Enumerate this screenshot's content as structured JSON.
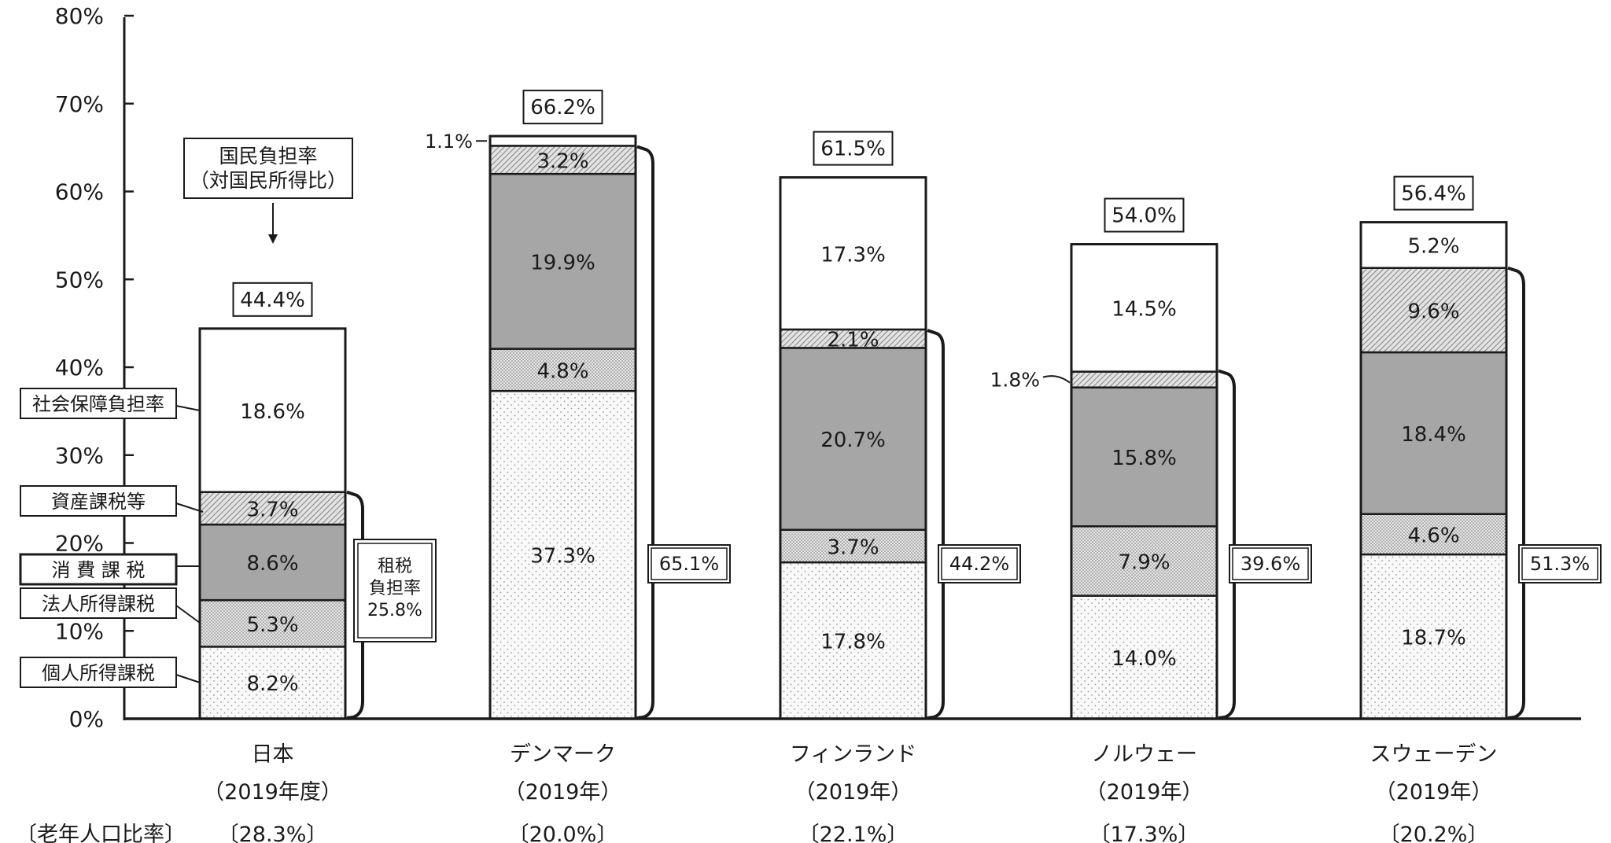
{
  "chart_data": {
    "type": "bar",
    "stacked": true,
    "ylim": [
      0,
      80
    ],
    "ytick_labels": [
      "0%",
      "10%",
      "20%",
      "30%",
      "40%",
      "50%",
      "60%",
      "70%",
      "80%"
    ],
    "ytick_values": [
      0,
      10,
      20,
      30,
      40,
      50,
      60,
      70,
      80
    ],
    "grid": false,
    "series": [
      {
        "name": "個人所得課税",
        "pattern": "dots"
      },
      {
        "name": "法人所得課税",
        "pattern": "dense-dots"
      },
      {
        "name": "消 費 課 税",
        "pattern": "solid-gray"
      },
      {
        "name": "資産課税等",
        "pattern": "hatch"
      },
      {
        "name": "社会保障負担率",
        "pattern": "white"
      }
    ],
    "categories": [
      {
        "name": "日本",
        "year": "（2019年度）",
        "elderly": "〔28.3%〕",
        "values": [
          8.2,
          5.3,
          8.6,
          3.7,
          18.6
        ],
        "labels": [
          "8.2%",
          "5.3%",
          "8.6%",
          "3.7%",
          "18.6%"
        ],
        "total": "44.4%",
        "tax": "25.8%",
        "tax_value": 25.8
      },
      {
        "name": "デンマーク",
        "year": "（2019年）",
        "elderly": "〔20.0%〕",
        "values": [
          37.3,
          4.8,
          19.9,
          3.2,
          1.1
        ],
        "labels": [
          "37.3%",
          "4.8%",
          "19.9%",
          "3.2%",
          "1.1%"
        ],
        "total": "66.2%",
        "tax": "65.1%",
        "tax_value": 65.1
      },
      {
        "name": "フィンランド",
        "year": "（2019年）",
        "elderly": "〔22.1%〕",
        "values": [
          17.8,
          3.7,
          20.7,
          2.1,
          17.3
        ],
        "labels": [
          "17.8%",
          "3.7%",
          "20.7%",
          "2.1%",
          "17.3%"
        ],
        "total": "61.5%",
        "tax": "44.2%",
        "tax_value": 44.2
      },
      {
        "name": "ノルウェー",
        "year": "（2019年）",
        "elderly": "〔17.3%〕",
        "values": [
          14.0,
          7.9,
          15.8,
          1.8,
          14.5
        ],
        "labels": [
          "14.0%",
          "7.9%",
          "15.8%",
          "1.8%",
          "14.5%"
        ],
        "total": "54.0%",
        "tax": "39.6%",
        "tax_value": 39.6
      },
      {
        "name": "スウェーデン",
        "year": "（2019年）",
        "elderly": "〔20.2%〕",
        "values": [
          18.7,
          4.6,
          18.4,
          9.6,
          5.2
        ],
        "labels": [
          "18.7%",
          "4.6%",
          "18.4%",
          "9.6%",
          "5.2%"
        ],
        "total": "56.4%",
        "tax": "51.3%",
        "tax_value": 51.3
      }
    ],
    "annotations": {
      "burden_title_line1": "国民負担率",
      "burden_title_line2": "（対国民所得比）",
      "tax_title_line1": "租税",
      "tax_title_line2": "負担率",
      "elderly_label": "〔老年人口比率〕"
    }
  }
}
